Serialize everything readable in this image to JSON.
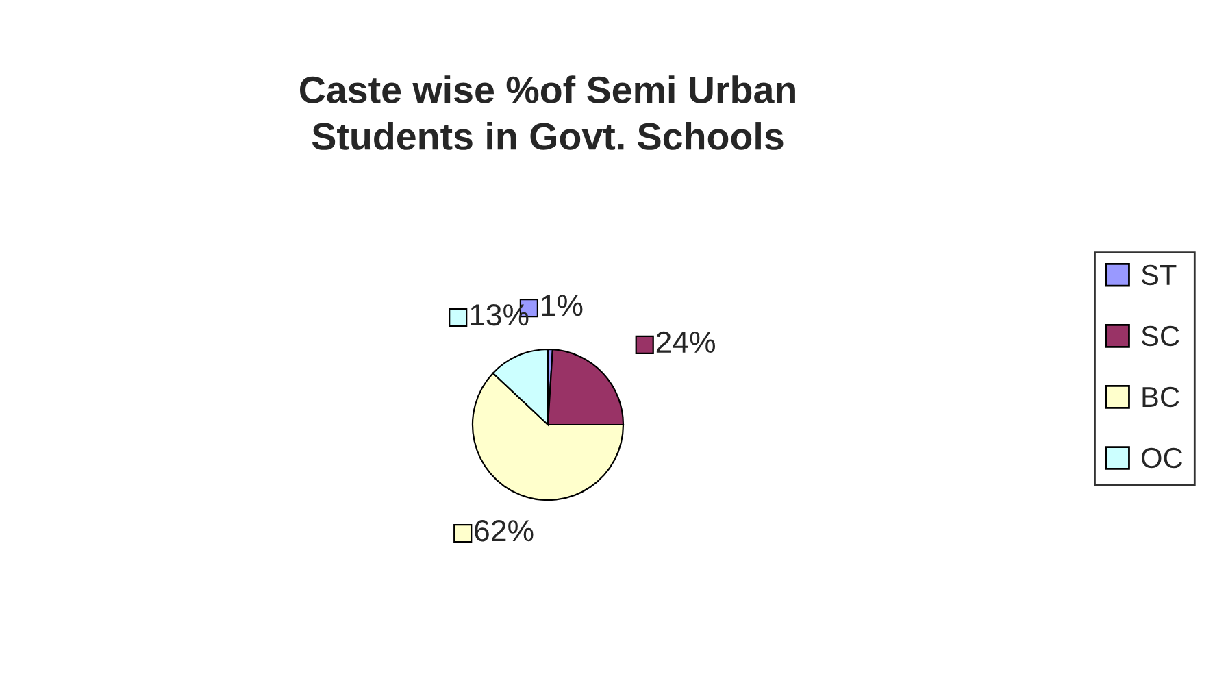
{
  "chart_data": {
    "type": "pie",
    "title": "Caste wise %of Semi Urban\nStudents in Govt. Schools",
    "categories": [
      "ST",
      "SC",
      "BC",
      "OC"
    ],
    "values": [
      1,
      24,
      62,
      13
    ],
    "value_labels": [
      "1%",
      "24%",
      "62%",
      "13%"
    ],
    "colors": [
      "#9999ff",
      "#993366",
      "#ffffcc",
      "#ccffff"
    ],
    "legend": "right"
  }
}
